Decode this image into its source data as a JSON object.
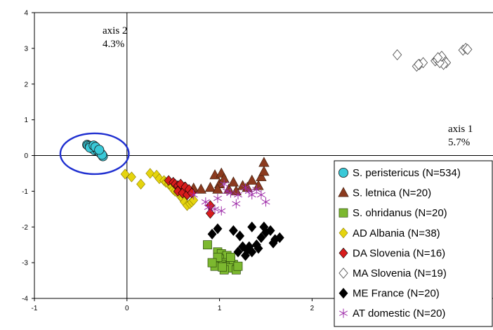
{
  "chart_data": {
    "type": "scatter",
    "xlim": [
      -1,
      4
    ],
    "ylim": [
      -4,
      4
    ],
    "x_ticks": [
      -1,
      0,
      1,
      2,
      3,
      4
    ],
    "y_ticks": [
      -4,
      -3,
      -2,
      -1,
      0,
      1,
      2,
      3,
      4
    ],
    "x_tick_labels": [
      "-1",
      "0",
      "1",
      "2",
      "3",
      "4"
    ],
    "y_tick_labels": [
      "-4",
      "-3",
      "-2",
      "-1",
      "0",
      "1",
      "2",
      "3",
      "4"
    ],
    "axis1_label": "axis 1",
    "axis1_percent": "5.7%",
    "axis2_label": "axis 2",
    "axis2_percent": "4.3%",
    "grid": false,
    "legend_position": "bottom-right",
    "highlight_circle": {
      "cx": -0.35,
      "cy": 0.05,
      "rx": 0.37,
      "ry": 0.57,
      "color": "#1f2fd0"
    },
    "series": [
      {
        "name": "S. peristericus (N=534)",
        "marker": "circle",
        "color": "#39c9d8",
        "points": [
          [
            -0.43,
            0.3
          ],
          [
            -0.42,
            0.28
          ],
          [
            -0.4,
            0.27
          ],
          [
            -0.38,
            0.25
          ],
          [
            -0.36,
            0.22
          ],
          [
            -0.34,
            0.18
          ],
          [
            -0.32,
            0.14
          ],
          [
            -0.3,
            0.1
          ],
          [
            -0.28,
            0.05
          ],
          [
            -0.26,
            -0.02
          ],
          [
            -0.38,
            0.2
          ],
          [
            -0.35,
            0.15
          ],
          [
            -0.33,
            0.2
          ],
          [
            -0.31,
            0.12
          ],
          [
            -0.29,
            0.08
          ],
          [
            -0.27,
            0.02
          ],
          [
            -0.4,
            0.22
          ],
          [
            -0.36,
            0.28
          ],
          [
            -0.34,
            0.24
          ],
          [
            -0.3,
            0.16
          ]
        ]
      },
      {
        "name": "S. letnica (N=20)",
        "marker": "triangle",
        "color": "#8b3a1e",
        "points": [
          [
            0.55,
            -0.85
          ],
          [
            0.62,
            -0.9
          ],
          [
            0.72,
            -0.92
          ],
          [
            0.8,
            -0.95
          ],
          [
            0.9,
            -0.9
          ],
          [
            0.95,
            -0.55
          ],
          [
            1.02,
            -0.5
          ],
          [
            1.0,
            -0.8
          ],
          [
            1.1,
            -0.95
          ],
          [
            1.15,
            -0.75
          ],
          [
            1.25,
            -0.85
          ],
          [
            1.35,
            -0.7
          ],
          [
            1.42,
            -0.85
          ],
          [
            1.45,
            -0.6
          ],
          [
            1.48,
            -0.45
          ],
          [
            1.48,
            -0.2
          ],
          [
            1.3,
            -0.9
          ],
          [
            0.98,
            -0.95
          ],
          [
            1.05,
            -0.65
          ],
          [
            1.18,
            -1.0
          ]
        ]
      },
      {
        "name": "S. ohridanus (N=20)",
        "marker": "square",
        "color": "#7cb82f",
        "points": [
          [
            0.87,
            -2.5
          ],
          [
            0.98,
            -2.7
          ],
          [
            1.02,
            -2.75
          ],
          [
            1.08,
            -2.8
          ],
          [
            1.0,
            -2.9
          ],
          [
            0.98,
            -3.0
          ],
          [
            1.05,
            -3.0
          ],
          [
            1.12,
            -2.95
          ],
          [
            1.02,
            -3.05
          ],
          [
            0.95,
            -3.1
          ],
          [
            1.08,
            -3.1
          ],
          [
            1.15,
            -3.05
          ],
          [
            1.1,
            -3.15
          ],
          [
            1.18,
            -3.2
          ],
          [
            1.2,
            -3.1
          ],
          [
            1.05,
            -3.2
          ],
          [
            0.98,
            -2.85
          ],
          [
            1.12,
            -2.85
          ],
          [
            1.03,
            -3.12
          ],
          [
            0.92,
            -3.0
          ]
        ]
      },
      {
        "name": "AD Albania (N=38)",
        "marker": "diamond",
        "color": "#e5d40e",
        "points": [
          [
            -0.02,
            -0.52
          ],
          [
            0.05,
            -0.6
          ],
          [
            0.15,
            -0.8
          ],
          [
            0.25,
            -0.5
          ],
          [
            0.32,
            -0.55
          ],
          [
            0.35,
            -0.65
          ],
          [
            0.4,
            -0.7
          ],
          [
            0.42,
            -0.75
          ],
          [
            0.45,
            -0.8
          ],
          [
            0.48,
            -0.85
          ],
          [
            0.5,
            -0.95
          ],
          [
            0.52,
            -1.0
          ],
          [
            0.55,
            -1.05
          ],
          [
            0.58,
            -1.15
          ],
          [
            0.6,
            -1.2
          ],
          [
            0.62,
            -1.3
          ],
          [
            0.65,
            -1.4
          ],
          [
            0.68,
            -1.35
          ],
          [
            0.7,
            -1.3
          ],
          [
            0.72,
            -1.25
          ]
        ]
      },
      {
        "name": "DA Slovenia (N=16)",
        "marker": "diamond",
        "color": "#d81c1c",
        "points": [
          [
            0.45,
            -0.7
          ],
          [
            0.5,
            -0.75
          ],
          [
            0.52,
            -0.8
          ],
          [
            0.55,
            -0.85
          ],
          [
            0.58,
            -0.9
          ],
          [
            0.6,
            -0.95
          ],
          [
            0.62,
            -1.0
          ],
          [
            0.55,
            -1.0
          ],
          [
            0.6,
            -1.05
          ],
          [
            0.65,
            -1.1
          ],
          [
            0.58,
            -0.8
          ],
          [
            0.63,
            -0.88
          ],
          [
            0.67,
            -0.95
          ],
          [
            0.7,
            -1.05
          ],
          [
            0.9,
            -1.4
          ],
          [
            0.9,
            -1.62
          ]
        ]
      },
      {
        "name": "MA Slovenia (N=19)",
        "marker": "diamond-open",
        "color": "#555555",
        "points": [
          [
            2.92,
            2.82
          ],
          [
            3.13,
            2.5
          ],
          [
            3.16,
            2.55
          ],
          [
            3.2,
            2.6
          ],
          [
            3.33,
            2.65
          ],
          [
            3.35,
            2.7
          ],
          [
            3.38,
            2.72
          ],
          [
            3.4,
            2.75
          ],
          [
            3.42,
            2.7
          ],
          [
            3.45,
            2.6
          ],
          [
            3.42,
            2.55
          ],
          [
            3.35,
            2.68
          ],
          [
            3.38,
            2.6
          ],
          [
            3.63,
            2.95
          ],
          [
            3.66,
            3.0
          ],
          [
            3.68,
            2.97
          ],
          [
            3.15,
            2.55
          ],
          [
            3.4,
            2.78
          ],
          [
            3.36,
            2.74
          ]
        ]
      },
      {
        "name": "ME France (N=20)",
        "marker": "diamond",
        "color": "#000000",
        "points": [
          [
            0.92,
            -2.2
          ],
          [
            0.98,
            -2.05
          ],
          [
            1.15,
            -2.1
          ],
          [
            1.22,
            -2.25
          ],
          [
            1.25,
            -2.55
          ],
          [
            1.3,
            -2.65
          ],
          [
            1.32,
            -2.55
          ],
          [
            1.28,
            -2.8
          ],
          [
            1.35,
            -2.7
          ],
          [
            1.4,
            -2.5
          ],
          [
            1.45,
            -2.3
          ],
          [
            1.5,
            -2.15
          ],
          [
            1.58,
            -2.45
          ],
          [
            1.6,
            -2.35
          ],
          [
            1.65,
            -2.3
          ],
          [
            1.48,
            -2.0
          ],
          [
            1.55,
            -2.1
          ],
          [
            1.35,
            -2.0
          ],
          [
            1.2,
            -2.7
          ],
          [
            1.42,
            -2.6
          ]
        ]
      },
      {
        "name": "AT domestic (N=20)",
        "marker": "asterisk",
        "color": "#9d2aa8",
        "points": [
          [
            0.72,
            -1.1
          ],
          [
            0.85,
            -1.3
          ],
          [
            0.88,
            -1.45
          ],
          [
            0.95,
            -1.5
          ],
          [
            1.02,
            -1.55
          ],
          [
            1.05,
            -0.8
          ],
          [
            1.08,
            -1.0
          ],
          [
            1.12,
            -1.05
          ],
          [
            1.2,
            -1.1
          ],
          [
            1.28,
            -0.9
          ],
          [
            1.32,
            -1.0
          ],
          [
            1.35,
            -1.1
          ],
          [
            1.45,
            -1.1
          ],
          [
            1.5,
            -1.3
          ],
          [
            2.35,
            -0.72
          ],
          [
            2.3,
            -1.25
          ],
          [
            2.72,
            -1.25
          ],
          [
            1.18,
            -1.35
          ],
          [
            0.98,
            -1.2
          ],
          [
            1.4,
            -0.95
          ]
        ]
      }
    ]
  }
}
